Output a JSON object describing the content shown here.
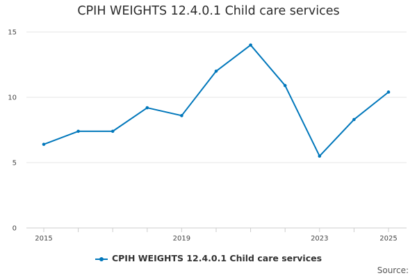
{
  "chart_data": {
    "type": "line",
    "title": "CPIH WEIGHTS 12.4.0.1 Child care services",
    "xlabel": "",
    "ylabel": "",
    "x": [
      2015,
      2016,
      2017,
      2018,
      2019,
      2020,
      2021,
      2022,
      2023,
      2024,
      2025
    ],
    "x_tick_labels": [
      "2015",
      "2019",
      "2023",
      "2025"
    ],
    "y_ticks": [
      0,
      5,
      10,
      15
    ],
    "ylim": [
      0,
      15
    ],
    "grid": true,
    "legend_position": "bottom",
    "series": [
      {
        "name": "CPIH WEIGHTS 12.4.0.1 Child care services",
        "color": "#0077bb",
        "values": [
          6.4,
          7.4,
          7.4,
          9.2,
          8.6,
          12.0,
          14.0,
          10.9,
          5.5,
          8.3,
          10.4
        ]
      }
    ],
    "source_label": "Source:"
  }
}
